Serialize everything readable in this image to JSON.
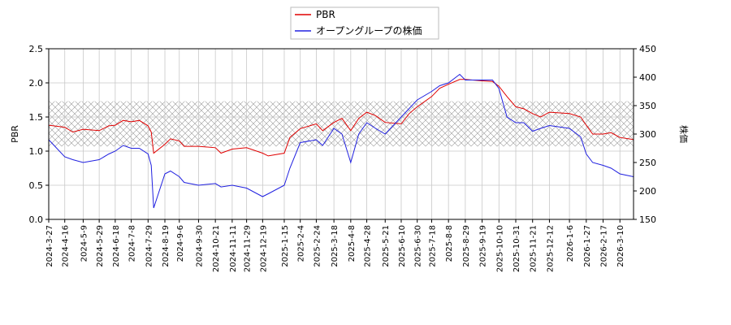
{
  "chart_data": {
    "type": "line",
    "x": [
      "2024-3-27",
      "2024-4-16",
      "2024-4-26",
      "2024-5-9",
      "2024-5-29",
      "2024-6-10",
      "2024-6-18",
      "2024-6-28",
      "2024-7-8",
      "2024-7-18",
      "2024-7-29",
      "2024-8-2",
      "2024-8-5",
      "2024-8-19",
      "2024-8-26",
      "2024-9-6",
      "2024-9-12",
      "2024-9-30",
      "2024-10-21",
      "2024-10-28",
      "2024-11-11",
      "2024-11-29",
      "2024-12-19",
      "2024-12-26",
      "2025-1-15",
      "2025-1-22",
      "2025-2-4",
      "2025-2-24",
      "2025-3-4",
      "2025-3-18",
      "2025-3-28",
      "2025-4-8",
      "2025-4-18",
      "2025-4-28",
      "2025-5-9",
      "2025-5-21",
      "2025-6-10",
      "2025-6-20",
      "2025-6-30",
      "2025-7-18",
      "2025-7-28",
      "2025-8-8",
      "2025-8-22",
      "2025-8-29",
      "2025-9-19",
      "2025-10-2",
      "2025-10-10",
      "2025-10-20",
      "2025-10-31",
      "2025-11-10",
      "2025-11-21",
      "2025-12-1",
      "2025-12-12",
      "2026-1-6",
      "2026-1-20",
      "2026-1-27",
      "2026-2-4",
      "2026-2-17",
      "2026-2-27",
      "2026-3-10",
      "2026-3-27"
    ],
    "series": [
      {
        "name": "PBR",
        "color": "#e00000",
        "axis": "y",
        "values": [
          1.38,
          1.35,
          1.28,
          1.32,
          1.3,
          1.37,
          1.38,
          1.45,
          1.43,
          1.45,
          1.37,
          1.28,
          0.97,
          1.1,
          1.18,
          1.15,
          1.07,
          1.07,
          1.05,
          0.97,
          1.03,
          1.05,
          0.97,
          0.93,
          0.97,
          1.2,
          1.33,
          1.4,
          1.3,
          1.42,
          1.48,
          1.3,
          1.48,
          1.57,
          1.52,
          1.42,
          1.4,
          1.55,
          1.65,
          1.8,
          1.92,
          1.98,
          2.05,
          2.05,
          2.03,
          2.02,
          1.95,
          1.8,
          1.65,
          1.62,
          1.55,
          1.5,
          1.57,
          1.55,
          1.5,
          1.38,
          1.25,
          1.25,
          1.27,
          1.2,
          1.17
        ]
      },
      {
        "name": "オープングループの株価",
        "color": "#2020e0",
        "axis": "y2",
        "values": [
          290,
          260,
          255,
          250,
          255,
          265,
          270,
          280,
          275,
          275,
          265,
          245,
          170,
          230,
          235,
          225,
          215,
          210,
          213,
          207,
          210,
          205,
          190,
          195,
          210,
          240,
          285,
          290,
          280,
          310,
          300,
          250,
          300,
          320,
          310,
          300,
          330,
          345,
          360,
          375,
          385,
          390,
          405,
          395,
          395,
          395,
          380,
          330,
          320,
          320,
          305,
          310,
          315,
          310,
          295,
          265,
          250,
          245,
          240,
          230,
          225
        ]
      }
    ],
    "shaded_range": [
      1.07,
      1.73
    ],
    "xlim": [
      "2024-3-27",
      "2026-3-27"
    ],
    "xticks": [
      "2024-3-27",
      "2024-4-16",
      "2024-5-9",
      "2024-5-29",
      "2024-6-18",
      "2024-7-8",
      "2024-7-29",
      "2024-8-19",
      "2024-9-6",
      "2024-9-30",
      "2024-10-21",
      "2024-11-11",
      "2024-11-29",
      "2024-12-19",
      "2025-1-15",
      "2025-2-4",
      "2025-2-24",
      "2025-3-18",
      "2025-4-8",
      "2025-4-28",
      "2025-5-21",
      "2025-6-10",
      "2025-6-30",
      "2025-7-18",
      "2025-8-8",
      "2025-8-29",
      "2025-9-19",
      "2025-10-10",
      "2025-10-31",
      "2025-11-21",
      "2025-12-12",
      "2026-1-6",
      "2026-1-27",
      "2026-2-17",
      "2026-3-10"
    ],
    "ylim": [
      0,
      2.5
    ],
    "yticks": [
      {
        "value": 0,
        "label": "0.0"
      },
      {
        "value": 0.5,
        "label": "0.5"
      },
      {
        "value": 1,
        "label": "1.0"
      },
      {
        "value": 1.5,
        "label": "1.5"
      },
      {
        "value": 2,
        "label": "2.0"
      },
      {
        "value": 2.5,
        "label": "2.5"
      }
    ],
    "y2lim": [
      150,
      450
    ],
    "y2ticks": [
      150,
      200,
      250,
      300,
      350,
      400,
      450
    ],
    "ylabel": "PBR",
    "y2label": "株価",
    "grid": true,
    "legend": "top"
  }
}
